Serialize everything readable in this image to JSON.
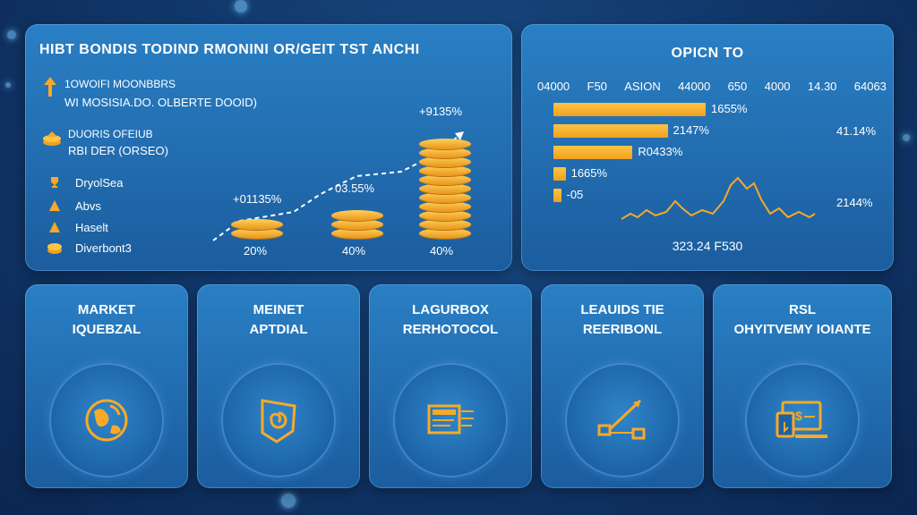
{
  "colors": {
    "accent": "#f7a92a",
    "panel": "#2370b6",
    "background": "#0f3566"
  },
  "left_panel": {
    "title": "HIBT BONDIS TODIND RMONINI OR/GEIT TST ANCHI",
    "notes": [
      {
        "icon": "arrow-up-icon",
        "line1": "1OWOIFI MOONBBRS",
        "line2": "WI MOSISIA.DO. OLBERTE DOOID)"
      },
      {
        "icon": "coins-icon",
        "line1": "DUORIS OFEIUB",
        "line2": "RBI DER (ORSEO)"
      }
    ],
    "legend": [
      {
        "icon": "trophy-icon",
        "label": "DryolSea"
      },
      {
        "icon": "triangle-icon",
        "label": "Abvs"
      },
      {
        "icon": "triangle-icon",
        "label": "Haselt"
      },
      {
        "icon": "coin-icon",
        "label": "Diverbont3"
      }
    ],
    "coin_stacks": [
      {
        "label": "20%",
        "value_label": "+01135%",
        "height": 2
      },
      {
        "label": "40%",
        "value_label": "03.55%",
        "height": 3
      },
      {
        "label": "40%",
        "value_label": "+9135%",
        "height": 11
      }
    ]
  },
  "right_panel": {
    "title": "OPICN TO",
    "header_values": [
      "04000",
      "F50",
      "ASION",
      "44000",
      "650",
      "4000",
      "14.30",
      "64063"
    ],
    "bars": [
      {
        "label": "1655%",
        "value": 100
      },
      {
        "label": "2147%",
        "value": 75
      },
      {
        "label": "R0433%",
        "value": 52
      },
      {
        "label": "1665%",
        "value": 8
      },
      {
        "label": "-05",
        "value": 5
      }
    ],
    "right_values": [
      "41.14%",
      "2144%"
    ],
    "footer": "323.24 F530"
  },
  "cards": [
    {
      "title_line1": "MARKET",
      "title_line2": "IQUEBZAL",
      "icon": "globe-icon"
    },
    {
      "title_line1": "MEINET",
      "title_line2": "APTDIAL",
      "icon": "shield-icon"
    },
    {
      "title_line1": "LAGURBOX",
      "title_line2": "RERHOTOCOL",
      "icon": "document-icon"
    },
    {
      "title_line1": "LEAUIDS TIE",
      "title_line2": "REERIBONL",
      "icon": "network-icon"
    },
    {
      "title_line1": "RSL",
      "title_line2": "OHYITVEMY IOIANTE",
      "icon": "monitor-icon"
    }
  ]
}
